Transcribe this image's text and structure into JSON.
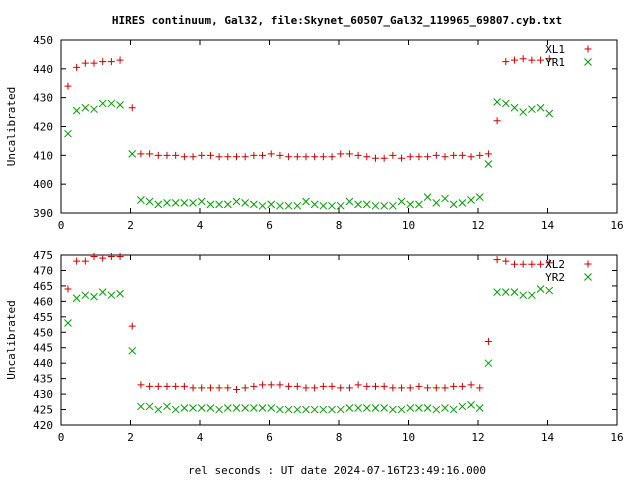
{
  "chart_data": {
    "title": "HIRES continuum, Gal32, file:Skynet_60507_Gal32_119965_69807.cyb.txt",
    "xlabel": "rel seconds : UT date 2024-07-16T23:49:16.000",
    "panels": [
      {
        "type": "scatter",
        "ylabel": "Uncalibrated",
        "xlim": [
          0,
          16
        ],
        "ylim": [
          390,
          450
        ],
        "xticks": [
          0,
          2,
          4,
          6,
          8,
          10,
          12,
          14,
          16
        ],
        "yticks": [
          390,
          400,
          410,
          420,
          430,
          440,
          450
        ],
        "legend_position": "top-right",
        "series": [
          {
            "name": "XL1",
            "color": "#cc0000",
            "marker": "plus",
            "x": [
              0.2,
              0.45,
              0.7,
              0.95,
              1.2,
              1.45,
              1.7,
              2.05,
              2.3,
              2.55,
              2.8,
              3.05,
              3.3,
              3.55,
              3.8,
              4.05,
              4.3,
              4.55,
              4.8,
              5.05,
              5.3,
              5.55,
              5.8,
              6.05,
              6.3,
              6.55,
              6.8,
              7.05,
              7.3,
              7.55,
              7.8,
              8.05,
              8.3,
              8.55,
              8.8,
              9.05,
              9.3,
              9.55,
              9.8,
              10.05,
              10.3,
              10.55,
              10.8,
              11.05,
              11.3,
              11.55,
              11.8,
              12.05,
              12.3,
              12.55,
              12.8,
              13.05,
              13.3,
              13.55,
              13.8,
              14.05
            ],
            "y": [
              434,
              440.5,
              442,
              442,
              442.5,
              442.5,
              443,
              426.5,
              410.5,
              410.5,
              410,
              410,
              410,
              409.5,
              409.5,
              410,
              410,
              409.5,
              409.5,
              409.5,
              409.5,
              410,
              410,
              410.5,
              410,
              409.5,
              409.5,
              409.5,
              409.5,
              409.5,
              409.5,
              410.5,
              410.5,
              410,
              409.5,
              409,
              409,
              410,
              409,
              409.5,
              409.5,
              409.5,
              410,
              409.5,
              410,
              410,
              409.5,
              410,
              410.5,
              422,
              442.5,
              443,
              443.5,
              443,
              443,
              443.5
            ]
          },
          {
            "name": "YR1",
            "color": "#009900",
            "marker": "x",
            "x": [
              0.2,
              0.45,
              0.7,
              0.95,
              1.2,
              1.45,
              1.7,
              2.05,
              2.3,
              2.55,
              2.8,
              3.05,
              3.3,
              3.55,
              3.8,
              4.05,
              4.3,
              4.55,
              4.8,
              5.05,
              5.3,
              5.55,
              5.8,
              6.05,
              6.3,
              6.55,
              6.8,
              7.05,
              7.3,
              7.55,
              7.8,
              8.05,
              8.3,
              8.55,
              8.8,
              9.05,
              9.3,
              9.55,
              9.8,
              10.05,
              10.3,
              10.55,
              10.8,
              11.05,
              11.3,
              11.55,
              11.8,
              12.05,
              12.3,
              12.55,
              12.8,
              13.05,
              13.3,
              13.55,
              13.8,
              14.05
            ],
            "y": [
              417.5,
              425.5,
              426.5,
              426,
              428,
              428,
              427.5,
              410.5,
              394.5,
              394,
              393,
              393.5,
              393.5,
              393.5,
              393.5,
              394,
              393,
              393,
              393,
              394,
              393.5,
              393,
              392.5,
              393,
              392.5,
              392.5,
              392.5,
              394,
              393,
              392.5,
              392.5,
              392.5,
              394,
              393,
              393,
              392.5,
              392.5,
              392.5,
              394,
              393,
              393,
              395.5,
              393.5,
              395,
              393,
              393.5,
              394.5,
              395.5,
              407,
              428.5,
              428,
              426.5,
              425,
              426,
              426.5,
              424.5
            ]
          }
        ]
      },
      {
        "type": "scatter",
        "ylabel": "Uncalibrated",
        "xlim": [
          0,
          16
        ],
        "ylim": [
          420,
          475
        ],
        "xticks": [
          0,
          2,
          4,
          6,
          8,
          10,
          12,
          14,
          16
        ],
        "yticks": [
          420,
          425,
          430,
          435,
          440,
          445,
          450,
          455,
          460,
          465,
          470,
          475
        ],
        "legend_position": "top-right",
        "series": [
          {
            "name": "XL2",
            "color": "#cc0000",
            "marker": "plus",
            "x": [
              0.2,
              0.45,
              0.7,
              0.95,
              1.2,
              1.45,
              1.7,
              2.05,
              2.3,
              2.55,
              2.8,
              3.05,
              3.3,
              3.55,
              3.8,
              4.05,
              4.3,
              4.55,
              4.8,
              5.05,
              5.3,
              5.55,
              5.8,
              6.05,
              6.3,
              6.55,
              6.8,
              7.05,
              7.3,
              7.55,
              7.8,
              8.05,
              8.3,
              8.55,
              8.8,
              9.05,
              9.3,
              9.55,
              9.8,
              10.05,
              10.3,
              10.55,
              10.8,
              11.05,
              11.3,
              11.55,
              11.8,
              12.05,
              12.3,
              12.55,
              12.8,
              13.05,
              13.3,
              13.55,
              13.8,
              14.05
            ],
            "y": [
              464,
              473,
              473,
              474.5,
              474,
              474.5,
              474.5,
              452,
              433,
              432.5,
              432.5,
              432.5,
              432.5,
              432.5,
              432,
              432,
              432,
              432,
              432,
              431.5,
              432,
              432.5,
              433,
              433,
              433,
              432.5,
              432.5,
              432,
              432,
              432.5,
              432.5,
              432,
              432,
              433,
              432.5,
              432.5,
              432.5,
              432,
              432,
              432,
              432.5,
              432,
              432,
              432,
              432.5,
              432.5,
              433,
              432,
              447,
              473.5,
              473,
              472,
              472,
              472,
              472,
              472.5
            ]
          },
          {
            "name": "YR2",
            "color": "#009900",
            "marker": "x",
            "x": [
              0.2,
              0.45,
              0.7,
              0.95,
              1.2,
              1.45,
              1.7,
              2.05,
              2.3,
              2.55,
              2.8,
              3.05,
              3.3,
              3.55,
              3.8,
              4.05,
              4.3,
              4.55,
              4.8,
              5.05,
              5.3,
              5.55,
              5.8,
              6.05,
              6.3,
              6.55,
              6.8,
              7.05,
              7.3,
              7.55,
              7.8,
              8.05,
              8.3,
              8.55,
              8.8,
              9.05,
              9.3,
              9.55,
              9.8,
              10.05,
              10.3,
              10.55,
              10.8,
              11.05,
              11.3,
              11.55,
              11.8,
              12.05,
              12.3,
              12.55,
              12.8,
              13.05,
              13.3,
              13.55,
              13.8,
              14.05
            ],
            "y": [
              453,
              461,
              462,
              461.5,
              463,
              462,
              462.5,
              444,
              426,
              426,
              425,
              426,
              425,
              425.5,
              425.5,
              425.5,
              425.5,
              425,
              425.5,
              425.5,
              425.5,
              425.5,
              425.5,
              425.5,
              425,
              425,
              425,
              425,
              425,
              425,
              425,
              425,
              425.5,
              425.5,
              425.5,
              425.5,
              425.5,
              425,
              425,
              425.5,
              425.5,
              425.5,
              425,
              425.5,
              425,
              426,
              426.5,
              425.5,
              440,
              463,
              463,
              463,
              462,
              462,
              464,
              463.5
            ]
          }
        ]
      }
    ]
  }
}
